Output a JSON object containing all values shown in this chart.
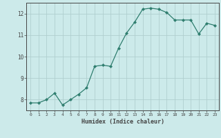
{
  "x": [
    0,
    1,
    2,
    3,
    4,
    5,
    6,
    7,
    8,
    9,
    10,
    11,
    12,
    13,
    14,
    15,
    16,
    17,
    18,
    19,
    20,
    21,
    22,
    23
  ],
  "y": [
    7.85,
    7.85,
    8.0,
    8.3,
    7.75,
    8.0,
    8.25,
    8.55,
    9.55,
    9.6,
    9.55,
    10.4,
    11.1,
    11.6,
    12.2,
    12.25,
    12.2,
    12.05,
    11.7,
    11.7,
    11.7,
    11.05,
    11.55,
    11.45
  ],
  "line_color": "#2e7d6e",
  "marker": "D",
  "marker_size": 2.2,
  "bg_color": "#cceaea",
  "grid_color": "#b0cfcf",
  "axis_color": "#444444",
  "xlabel": "Humidex (Indice chaleur)",
  "ylim": [
    7.5,
    12.5
  ],
  "xlim": [
    -0.5,
    23.5
  ],
  "yticks": [
    8,
    9,
    10,
    11,
    12
  ],
  "xticks": [
    0,
    1,
    2,
    3,
    4,
    5,
    6,
    7,
    8,
    9,
    10,
    11,
    12,
    13,
    14,
    15,
    16,
    17,
    18,
    19,
    20,
    21,
    22,
    23
  ],
  "xtick_labels": [
    "0",
    "1",
    "2",
    "3",
    "4",
    "5",
    "6",
    "7",
    "8",
    "9",
    "10",
    "11",
    "12",
    "13",
    "14",
    "15",
    "16",
    "17",
    "18",
    "19",
    "20",
    "21",
    "22",
    "23"
  ]
}
